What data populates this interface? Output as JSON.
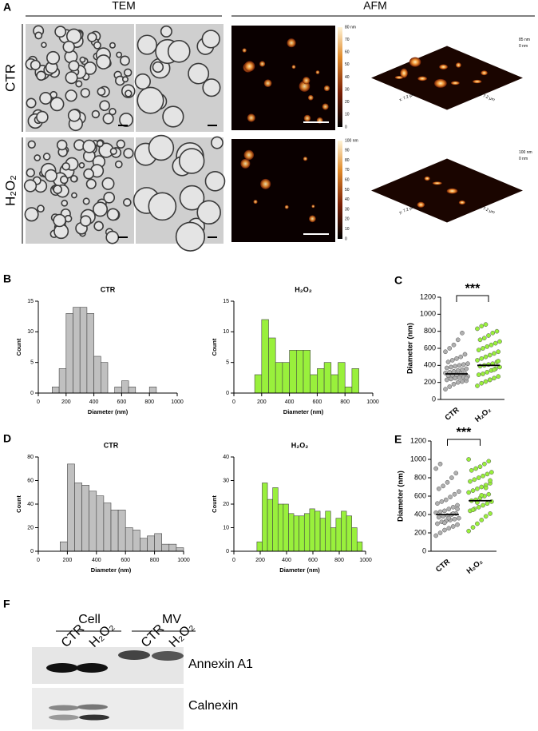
{
  "figure": {
    "panel_letters": [
      "A",
      "B",
      "C",
      "D",
      "E",
      "F"
    ],
    "headers": [
      "TEM",
      "AFM"
    ],
    "rows": [
      "CTR",
      "H₂O₂"
    ],
    "colorbars": [
      {
        "top_label": "80 nm",
        "ticks": [
          70,
          60,
          50,
          40,
          30,
          20,
          10,
          0
        ]
      },
      {
        "top_label": "100 nm",
        "ticks": [
          90,
          80,
          70,
          60,
          50,
          40,
          30,
          20,
          10,
          0
        ]
      }
    ],
    "surface_labels": [
      [
        "85 nm",
        "0 nm",
        "x: 7.2 µm",
        "y: 7.2 µm"
      ],
      [
        "100 nm",
        "0 nm",
        "y: 7.2 µm",
        "x: 7.2 µm"
      ]
    ],
    "blot": {
      "groups": [
        "Cell",
        "MV"
      ],
      "lanes": [
        "CTR",
        "H₂O₂",
        "CTR",
        "H₂O₂"
      ],
      "proteins": [
        "Annexin A1",
        "Calnexin"
      ]
    }
  },
  "chart_data": [
    {
      "type": "histogram",
      "title": "CTR",
      "xlabel": "Diameter (nm)",
      "ylabel": "Count",
      "color": "#c0c0c0",
      "bins": [
        100,
        150,
        200,
        250,
        300,
        350,
        400,
        450,
        500,
        550,
        600,
        650,
        700,
        750,
        800,
        850
      ],
      "values": [
        1,
        4,
        13,
        14,
        14,
        13,
        6,
        5,
        0,
        1,
        2,
        1,
        0,
        0,
        1
      ],
      "xlim": [
        0,
        1000
      ],
      "xticks": [
        0,
        200,
        400,
        600,
        800,
        1000
      ],
      "ylim": [
        0,
        15
      ],
      "yticks": [
        0,
        5,
        10,
        15
      ]
    },
    {
      "type": "histogram",
      "title": "H₂O₂",
      "xlabel": "Diameter (nm)",
      "ylabel": "Count",
      "color": "#99f03c",
      "bins": [
        150,
        200,
        250,
        300,
        350,
        400,
        450,
        500,
        550,
        600,
        650,
        700,
        750,
        800,
        850,
        900
      ],
      "values": [
        3,
        12,
        9,
        5,
        5,
        7,
        7,
        7,
        3,
        4,
        5,
        3,
        5,
        1,
        4
      ],
      "xlim": [
        0,
        1000
      ],
      "xticks": [
        0,
        200,
        400,
        600,
        800,
        1000
      ],
      "ylim": [
        0,
        15
      ],
      "yticks": [
        0,
        5,
        10,
        15
      ]
    },
    {
      "type": "strip",
      "ylabel": "Diameter (nm)",
      "categories": [
        "CTR",
        "H₂O₂"
      ],
      "colors": [
        "#b0b0b0",
        "#99f03c"
      ],
      "values": [
        [
          120,
          150,
          180,
          200,
          210,
          220,
          230,
          240,
          250,
          255,
          260,
          270,
          280,
          285,
          290,
          300,
          305,
          310,
          320,
          330,
          340,
          350,
          360,
          370,
          380,
          390,
          400,
          410,
          420,
          440,
          460,
          480,
          500,
          530,
          560,
          600,
          640,
          700,
          780,
          250
        ],
        [
          160,
          190,
          210,
          230,
          250,
          270,
          290,
          300,
          320,
          340,
          360,
          380,
          390,
          400,
          410,
          420,
          440,
          460,
          480,
          500,
          520,
          540,
          560,
          580,
          600,
          620,
          640,
          660,
          680,
          700,
          720,
          750,
          780,
          800,
          830,
          860,
          880,
          230,
          350,
          450
        ]
      ],
      "medians": [
        300,
        400
      ],
      "significance": "***",
      "ylim": [
        0,
        1200
      ],
      "yticks": [
        0,
        200,
        400,
        600,
        800,
        1000,
        1200
      ]
    },
    {
      "type": "histogram",
      "title": "CTR",
      "xlabel": "Diameter (nm)",
      "ylabel": "Count",
      "color": "#c0c0c0",
      "bins": [
        150,
        200,
        250,
        300,
        350,
        400,
        450,
        500,
        550,
        600,
        650,
        700,
        750,
        800,
        850,
        900,
        950,
        1000
      ],
      "values": [
        8,
        74,
        58,
        56,
        51,
        47,
        41,
        35,
        35,
        20,
        18,
        11,
        13,
        15,
        6,
        6,
        3
      ],
      "xlim": [
        0,
        1000
      ],
      "xticks": [
        0,
        200,
        400,
        600,
        800,
        1000
      ],
      "ylim": [
        0,
        80
      ],
      "yticks": [
        0,
        20,
        40,
        60,
        80
      ]
    },
    {
      "type": "histogram",
      "title": "H₂O₂",
      "xlabel": "Diameter (nm)",
      "ylabel": "Count",
      "color": "#99f03c",
      "bins": [
        175,
        215,
        255,
        295,
        335,
        375,
        415,
        455,
        495,
        535,
        575,
        615,
        655,
        695,
        735,
        775,
        815,
        855,
        895,
        935,
        975
      ],
      "values": [
        4,
        29,
        22,
        27,
        20,
        20,
        16,
        15,
        15,
        16,
        18,
        17,
        14,
        17,
        10,
        14,
        17,
        15,
        10,
        4
      ],
      "xlim": [
        0,
        1000
      ],
      "xticks": [
        0,
        200,
        400,
        600,
        800,
        1000
      ],
      "ylim": [
        0,
        40
      ],
      "yticks": [
        0,
        10,
        20,
        30,
        40
      ]
    },
    {
      "type": "strip",
      "ylabel": "Diameter (nm)",
      "categories": [
        "CTR",
        "H₂O₂"
      ],
      "colors": [
        "#b0b0b0",
        "#99f03c"
      ],
      "values": [
        [
          170,
          200,
          230,
          250,
          270,
          290,
          300,
          320,
          330,
          340,
          350,
          360,
          370,
          380,
          390,
          400,
          410,
          420,
          430,
          440,
          460,
          480,
          500,
          520,
          540,
          560,
          590,
          620,
          650,
          680,
          710,
          750,
          800,
          850,
          900,
          950,
          310,
          360,
          410,
          460
        ],
        [
          220,
          260,
          300,
          340,
          380,
          410,
          440,
          460,
          480,
          500,
          520,
          540,
          550,
          560,
          580,
          600,
          620,
          640,
          660,
          680,
          700,
          720,
          740,
          760,
          780,
          800,
          820,
          840,
          860,
          880,
          900,
          920,
          950,
          980,
          1000,
          450,
          530,
          610,
          690,
          770
        ]
      ],
      "medians": [
        400,
        550
      ],
      "significance": "***",
      "ylim": [
        0,
        1200
      ],
      "yticks": [
        0,
        200,
        400,
        600,
        800,
        1000,
        1200
      ]
    }
  ]
}
